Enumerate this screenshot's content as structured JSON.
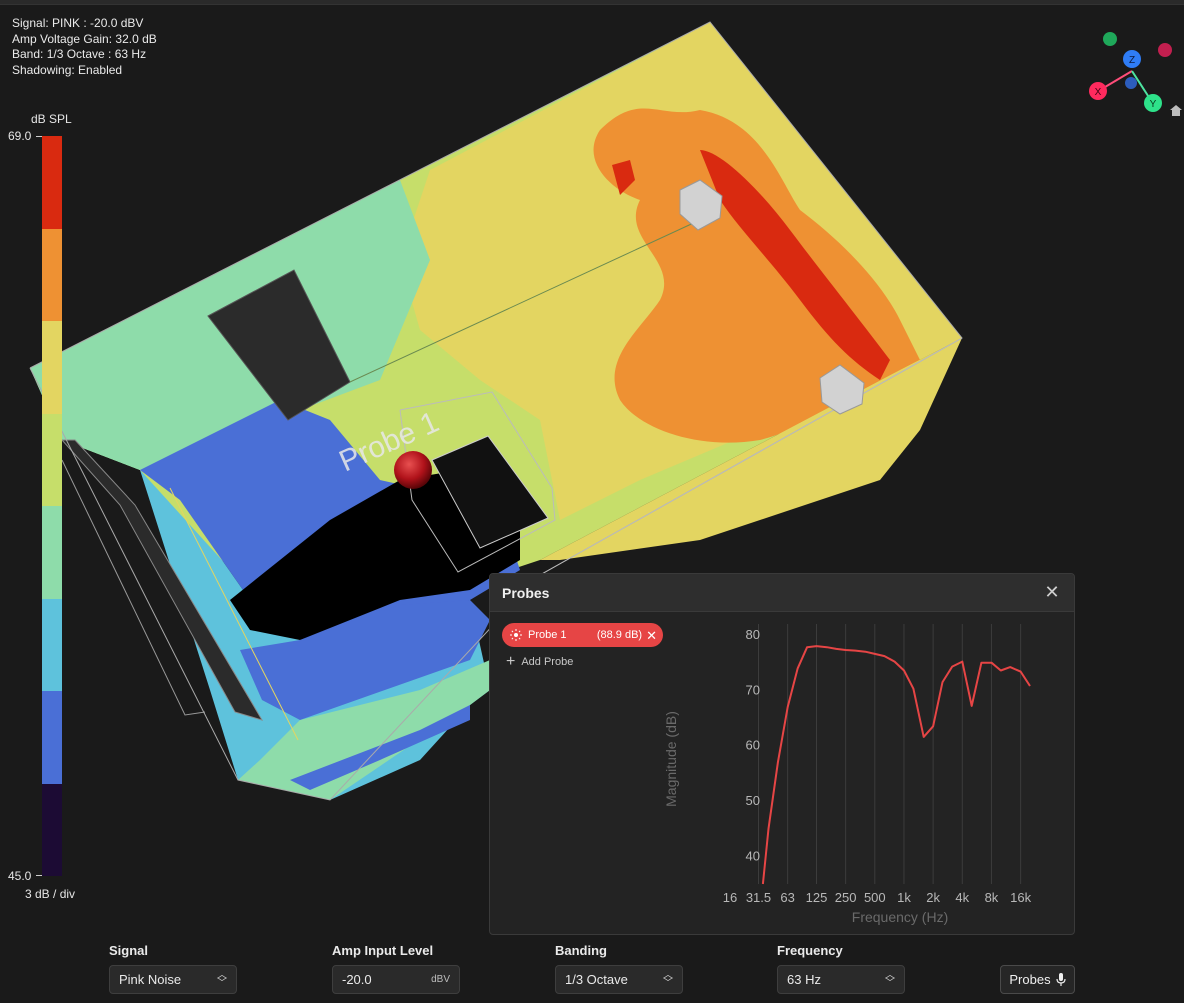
{
  "info": {
    "signal": "Signal: PINK : -20.0 dBV",
    "gain": "Amp Voltage Gain: 32.0 dB",
    "band": "Band: 1/3 Octave : 63 Hz",
    "shadowing": "Shadowing: Enabled"
  },
  "colorbar": {
    "unit": "dB SPL",
    "max": "69.0",
    "min": "45.0",
    "division": "3 dB / div",
    "colors": [
      "#d92a10",
      "#ee9133",
      "#e3d561",
      "#c6de6a",
      "#8edcaa",
      "#5ec2dc",
      "#4a6fd6",
      "#1c0b34"
    ]
  },
  "scene": {
    "probe_label": "Probe 1",
    "probe_color": "#c0171c"
  },
  "gizmo": {
    "z_label": "Z",
    "x_label": "X",
    "y_label": "Y",
    "home_icon": "home-icon"
  },
  "probes_panel": {
    "title": "Probes",
    "probe": {
      "name": "Probe 1",
      "value": "(88.9 dB)",
      "color": "#e64545"
    },
    "add_label": "Add Probe"
  },
  "chart_data": {
    "type": "line",
    "xlabel": "Frequency (Hz)",
    "ylabel": "Magnitude (dB)",
    "x_scale": "log",
    "xlim": [
      16,
      20000
    ],
    "ylim": [
      35,
      82
    ],
    "xticks": [
      16,
      31.5,
      63,
      125,
      250,
      500,
      1000,
      2000,
      4000,
      8000,
      16000
    ],
    "xtick_labels": [
      "16",
      "31.5",
      "63",
      "125",
      "250",
      "500",
      "1k",
      "2k",
      "4k",
      "8k",
      "16k"
    ],
    "yticks": [
      40,
      50,
      60,
      70,
      80
    ],
    "grid": "vertical",
    "series": [
      {
        "name": "Probe 1",
        "color": "#e64545",
        "x": [
          35,
          40,
          50,
          63,
          80,
          100,
          125,
          160,
          200,
          250,
          315,
          400,
          500,
          630,
          800,
          1000,
          1250,
          1600,
          2000,
          2500,
          3150,
          4000,
          5000,
          6300,
          8000,
          10000,
          12500,
          16000,
          20000
        ],
        "y": [
          35,
          45,
          57,
          67,
          74,
          77.8,
          78,
          77.8,
          77.5,
          77.3,
          77.2,
          77,
          76.6,
          76.2,
          75.2,
          73.6,
          70.3,
          61.6,
          63.5,
          71.5,
          74.3,
          75.2,
          67.2,
          75,
          75,
          73.6,
          74.2,
          73.4,
          70.8
        ]
      }
    ]
  },
  "controls": {
    "signal": {
      "label": "Signal",
      "value": "Pink Noise"
    },
    "amp": {
      "label": "Amp Input Level",
      "value": "-20.0",
      "unit": "dBV"
    },
    "banding": {
      "label": "Banding",
      "value": "1/3 Octave"
    },
    "frequency": {
      "label": "Frequency",
      "value": "63 Hz"
    },
    "probes_button": "Probes"
  }
}
